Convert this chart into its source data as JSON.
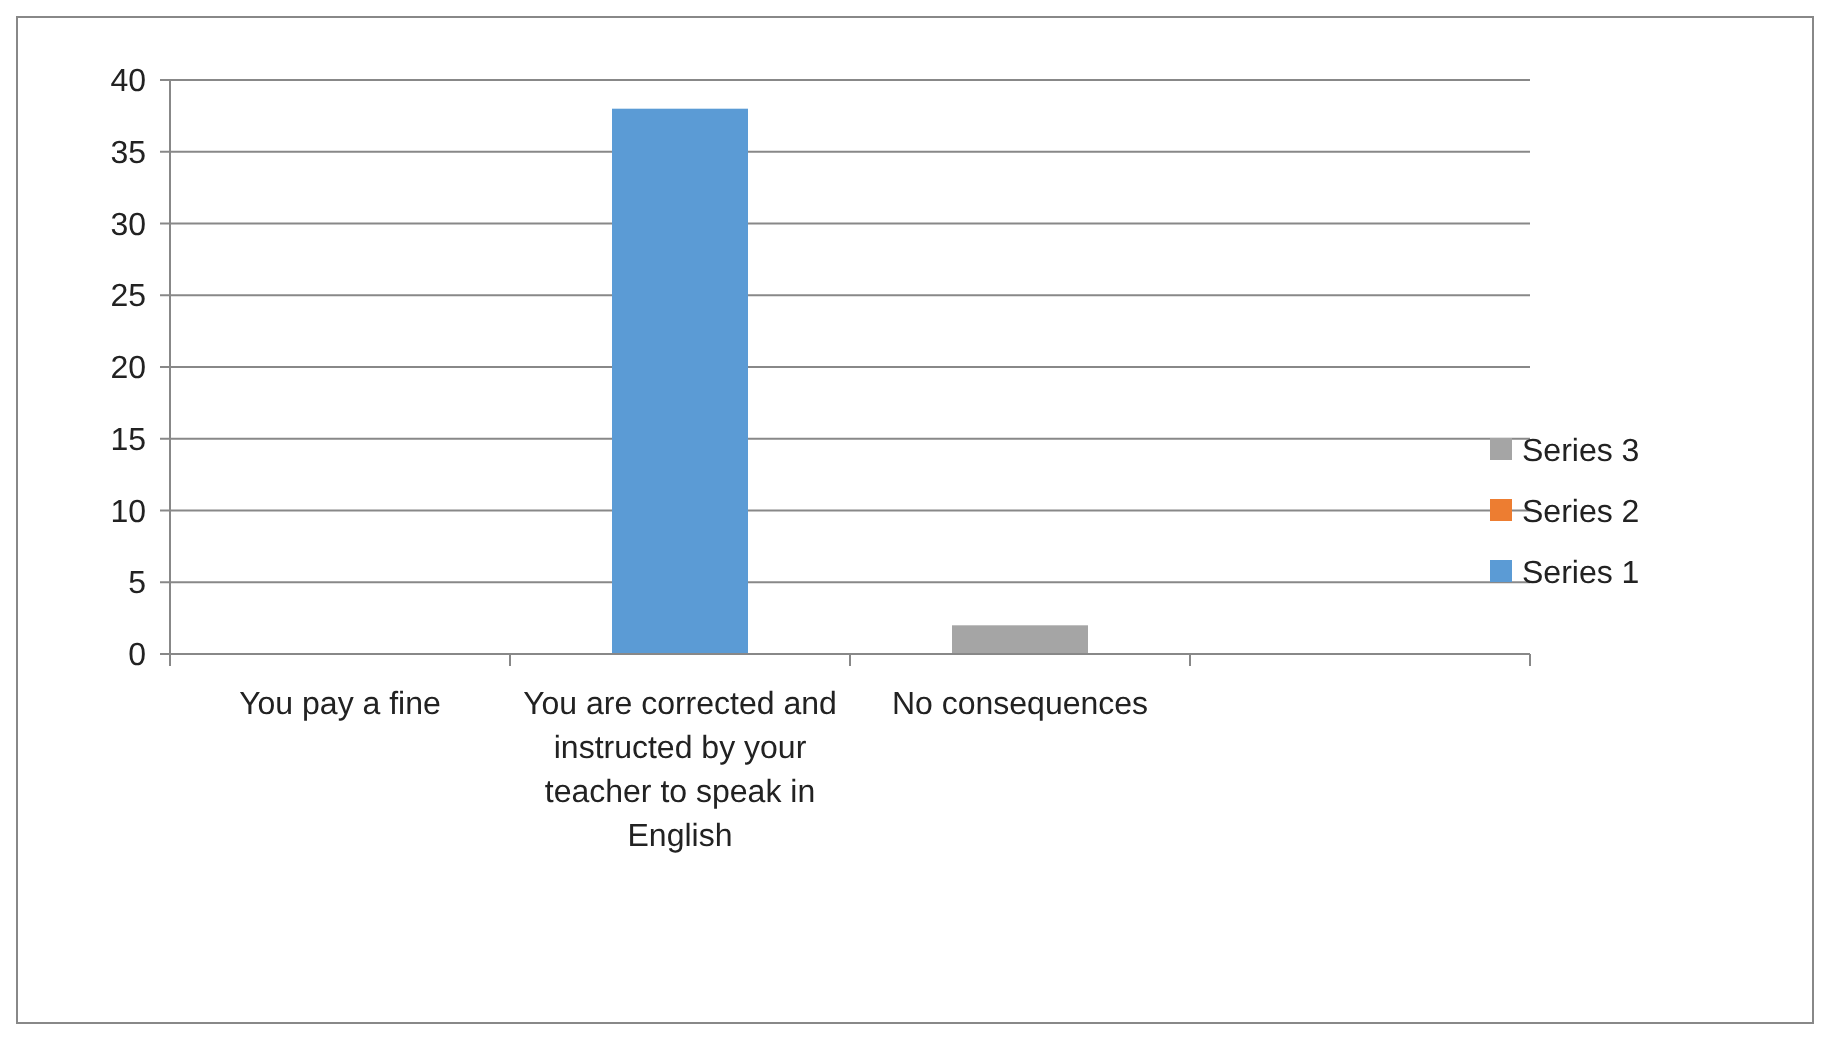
{
  "chart_data": {
    "type": "bar",
    "stacked": true,
    "categories": [
      "You pay a fine",
      "You are corrected and instructed by your teacher to speak in English",
      "No consequences",
      null
    ],
    "series": [
      {
        "name": "Series 1",
        "color": "#5b9bd5",
        "values": [
          null,
          38,
          null,
          null
        ]
      },
      {
        "name": "Series 2",
        "color": "#ed7d31",
        "values": [
          null,
          null,
          null,
          null
        ]
      },
      {
        "name": "Series 3",
        "color": "#a5a5a5",
        "values": [
          null,
          null,
          2,
          null
        ]
      }
    ],
    "ylim": [
      0,
      40
    ],
    "yticks": [
      0,
      5,
      10,
      15,
      20,
      25,
      30,
      35,
      40
    ],
    "grid": "y",
    "legend": "right"
  }
}
